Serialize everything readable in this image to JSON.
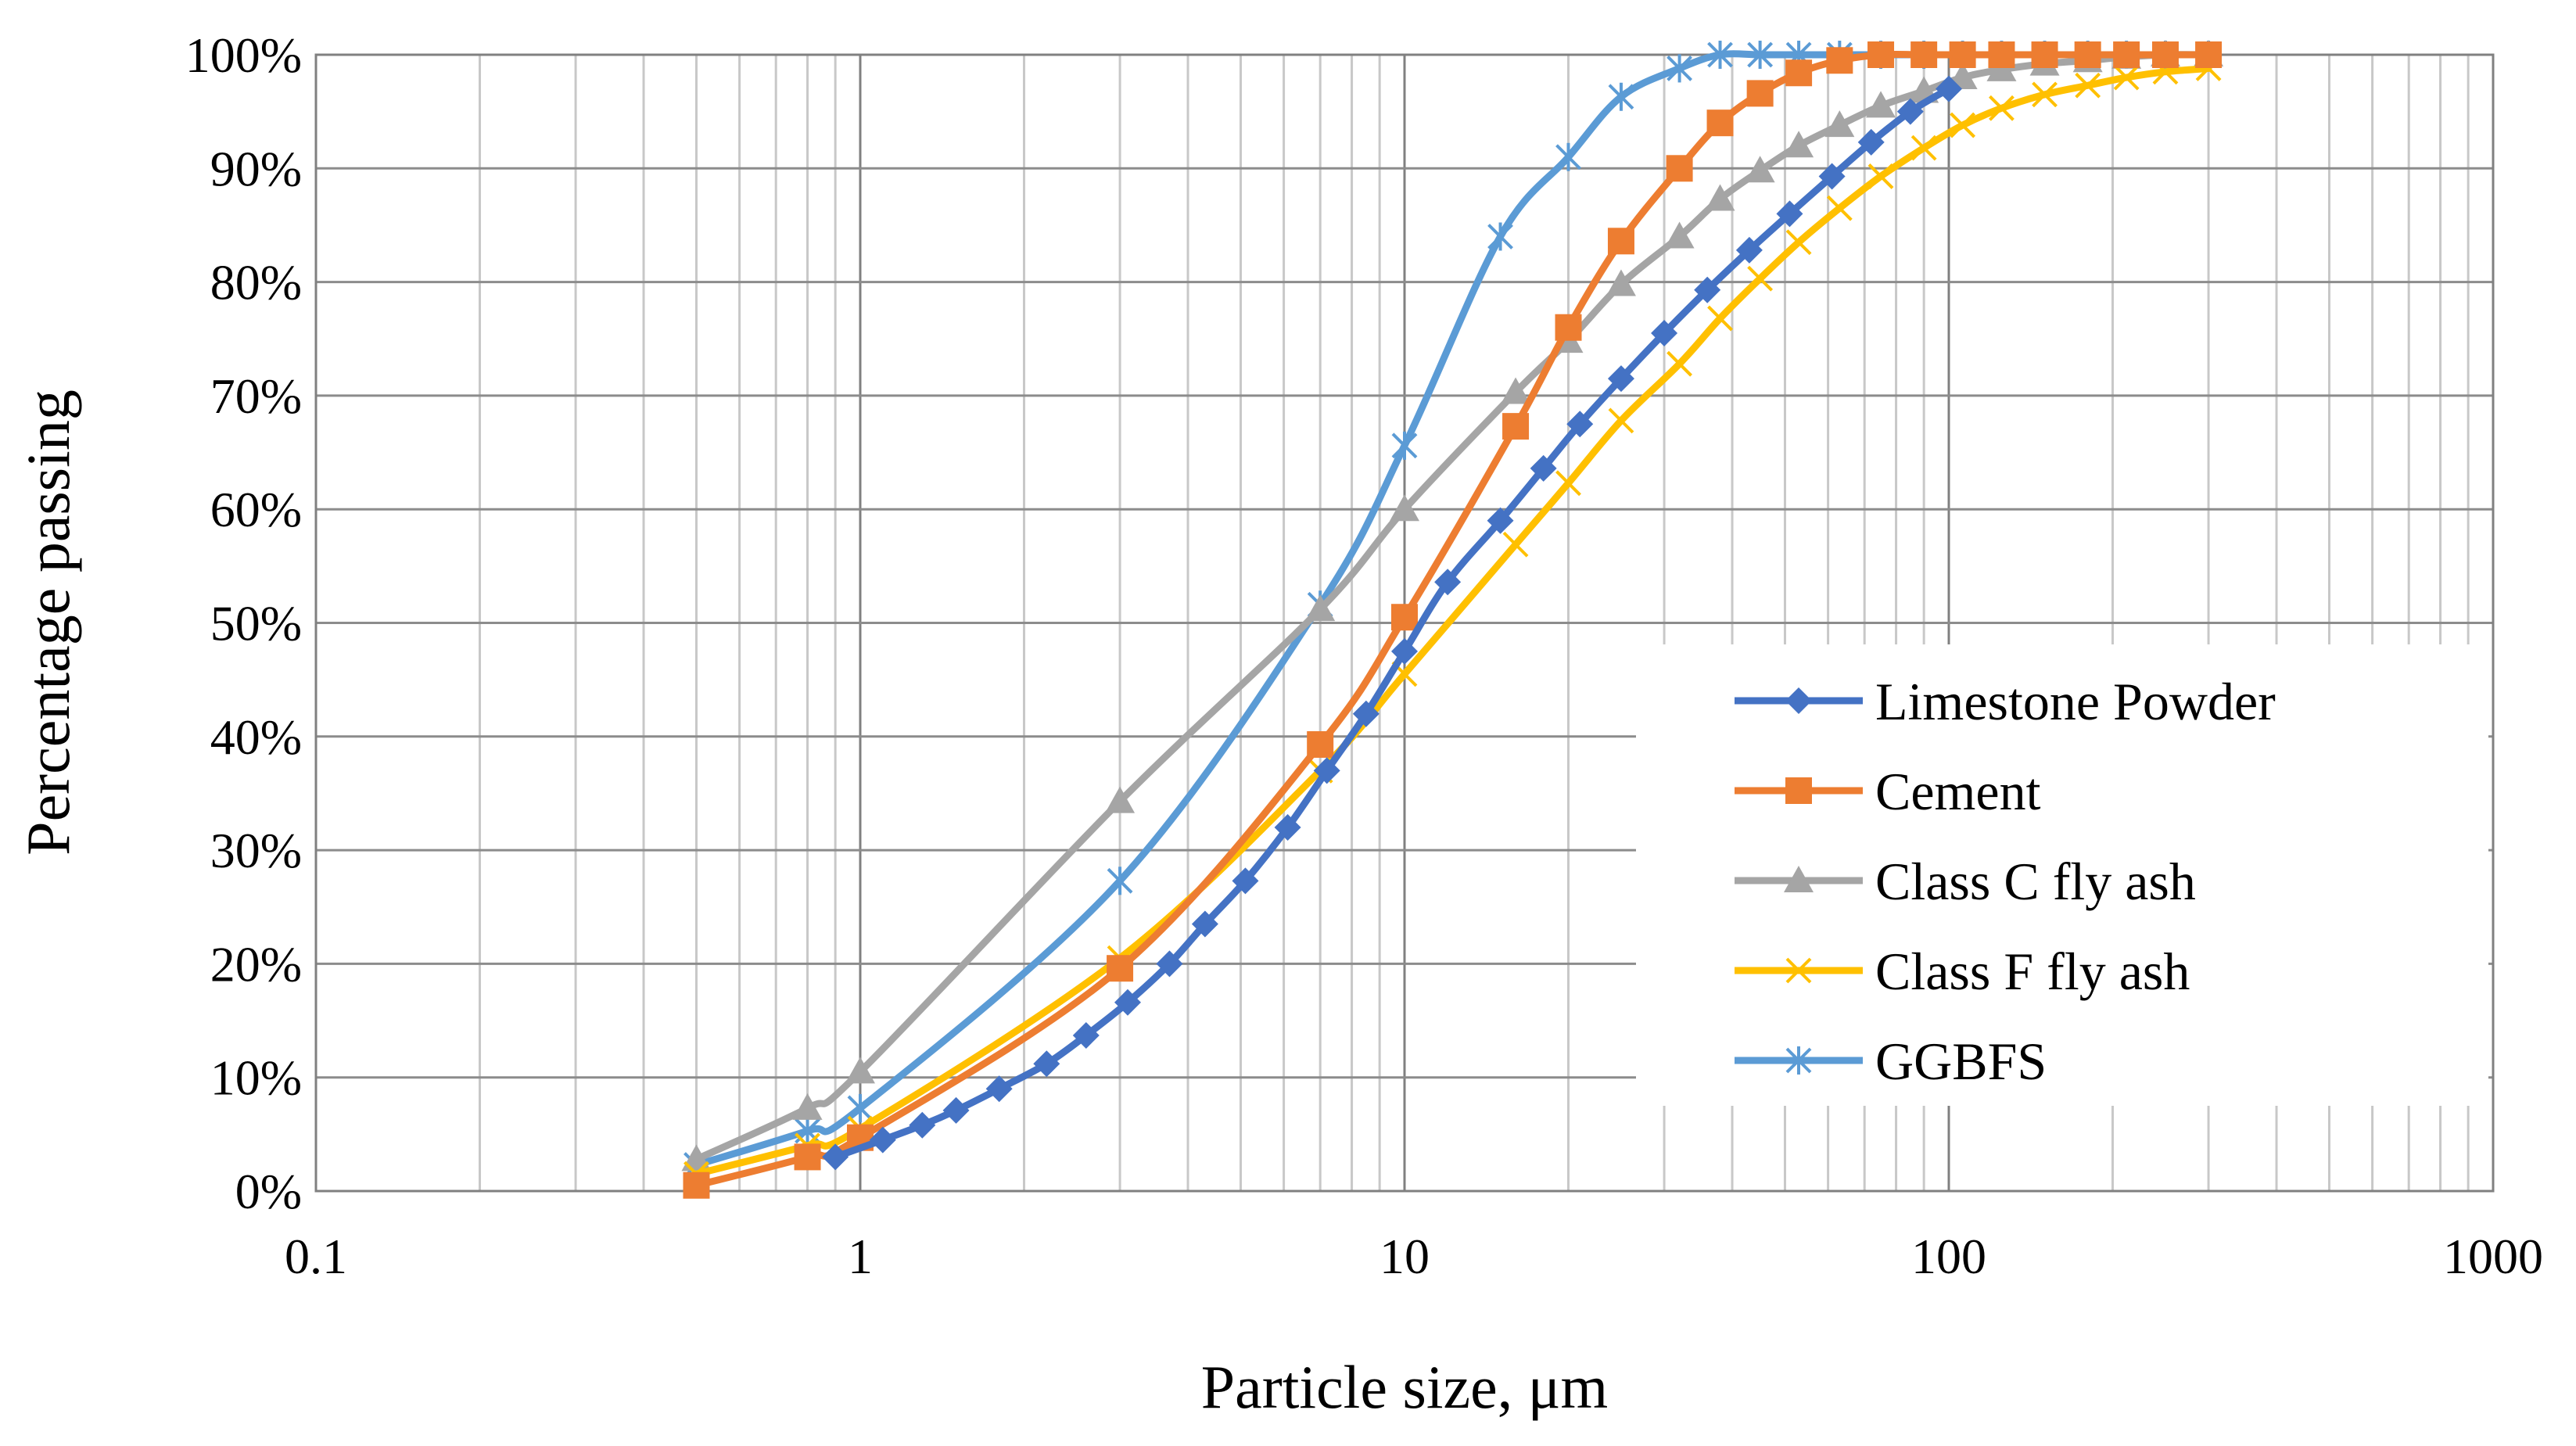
{
  "chart_data": {
    "type": "line",
    "title": "",
    "xlabel": "Particle size, μm",
    "ylabel": "Percentage passing",
    "xscale": "log",
    "xlim": [
      0.1,
      1000
    ],
    "ylim": [
      0,
      100
    ],
    "x_ticks": [
      0.1,
      1,
      10,
      100,
      1000
    ],
    "x_tick_labels": [
      "0.1",
      "1",
      "10",
      "100",
      "1000"
    ],
    "y_ticks": [
      0,
      10,
      20,
      30,
      40,
      50,
      60,
      70,
      80,
      90,
      100
    ],
    "y_tick_labels": [
      "0%",
      "10%",
      "20%",
      "30%",
      "40%",
      "50%",
      "60%",
      "70%",
      "80%",
      "90%",
      "100%"
    ],
    "grid": true,
    "legend_position": "center-right",
    "series": [
      {
        "name": "Limestone Powder",
        "color": "#4472C4",
        "marker": "diamond",
        "x": [
          0.9,
          1.1,
          1.3,
          1.5,
          1.8,
          2.2,
          2.6,
          3.1,
          3.7,
          4.3,
          5.1,
          6.1,
          7.2,
          8.5,
          10,
          12,
          15,
          18,
          21,
          25,
          30,
          36,
          43,
          51,
          61,
          72,
          85,
          100
        ],
        "y": [
          3,
          4.5,
          5.8,
          7.1,
          9,
          11.2,
          13.7,
          16.6,
          20,
          23.5,
          27.3,
          32,
          37,
          42,
          47.5,
          53.6,
          59,
          63.6,
          67.5,
          71.5,
          75.5,
          79.3,
          82.8,
          86,
          89.3,
          92.3,
          95,
          97
        ]
      },
      {
        "name": "Cement",
        "color": "#ED7D31",
        "marker": "square",
        "x": [
          0.5,
          0.8,
          1,
          3,
          7,
          10,
          16,
          20,
          25,
          32,
          38,
          45,
          53,
          63,
          75,
          90,
          106,
          125,
          150,
          180,
          212,
          250,
          300
        ],
        "y": [
          0.5,
          3,
          4.7,
          19.6,
          39.3,
          50.5,
          67.3,
          76,
          83.6,
          90,
          94,
          96.6,
          98.4,
          99.5,
          100,
          100,
          100,
          100,
          100,
          100,
          100,
          100,
          100
        ]
      },
      {
        "name": "Class C fly ash",
        "color": "#A5A5A5",
        "marker": "triangle",
        "x": [
          0.5,
          0.8,
          1,
          3,
          7,
          10,
          16,
          20,
          25,
          32,
          38,
          45,
          53,
          63,
          75,
          90,
          106,
          125,
          150,
          180,
          212,
          250,
          300
        ],
        "y": [
          2.8,
          7.3,
          10.5,
          34.3,
          51.2,
          60,
          70.3,
          74.8,
          79.8,
          84,
          87.3,
          89.8,
          92,
          93.8,
          95.5,
          96.8,
          98,
          98.7,
          99.2,
          99.5,
          99.8,
          100,
          100
        ]
      },
      {
        "name": "Class F fly ash",
        "color": "#FFC000",
        "marker": "x",
        "x": [
          0.5,
          0.8,
          1,
          3,
          7,
          10,
          16,
          20,
          25,
          32,
          38,
          45,
          53,
          63,
          75,
          90,
          106,
          125,
          150,
          180,
          212,
          250,
          300
        ],
        "y": [
          1.5,
          4,
          5.5,
          20.5,
          37,
          45.5,
          56.9,
          62.3,
          67.8,
          72.8,
          76.8,
          80.3,
          83.5,
          86.5,
          89.3,
          91.8,
          93.8,
          95.3,
          96.5,
          97.3,
          98,
          98.5,
          98.8
        ]
      },
      {
        "name": "GGBFS",
        "color": "#5B9BD5",
        "marker": "asterisk",
        "x": [
          0.5,
          0.8,
          1,
          3,
          7,
          10,
          15,
          20,
          25,
          32,
          38,
          45,
          53,
          63,
          75,
          90,
          106,
          125,
          150,
          180,
          212,
          250,
          300
        ],
        "y": [
          2.3,
          5.3,
          7.3,
          27.3,
          51.6,
          65.6,
          84,
          91,
          96.3,
          98.8,
          100,
          100,
          100,
          100,
          100,
          100,
          100,
          100,
          100,
          100,
          100,
          100,
          100
        ]
      }
    ]
  }
}
